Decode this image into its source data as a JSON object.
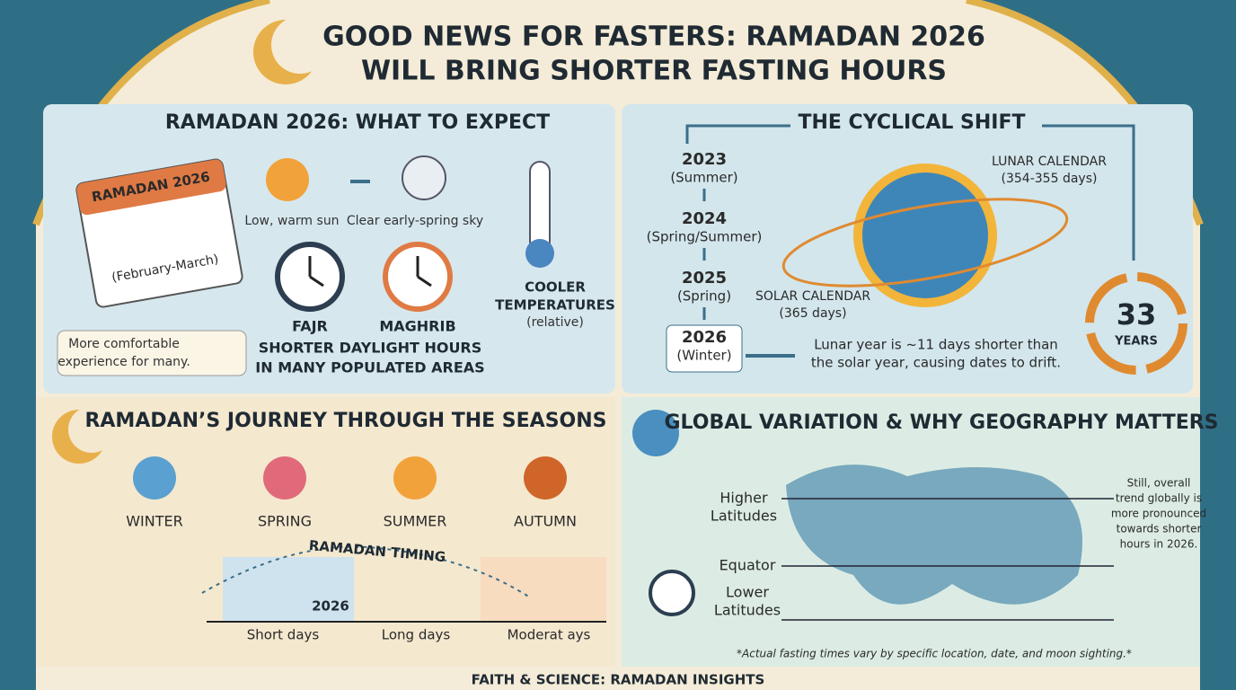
{
  "header": {
    "title_lines": [
      "GOOD NEWS FOR FASTERS: RAMADAN 2026",
      "WILL BRING SHORTER FASTING HOURS"
    ]
  },
  "expect": {
    "title": "RAMADAN 2026: WHAT TO EXPECT",
    "calendar_label": "RAMADAN 2026",
    "calendar_dates": "(February-March)",
    "sun_caption": "Low, warm sun",
    "sky_caption": "Clear early-spring sky",
    "fajr": "FAJR",
    "maghrib": "MAGHRIB",
    "daylight_lines": [
      "SHORTER DAYLIGHT HOURS",
      "IN MANY POPULATED AREAS"
    ],
    "temperature_lines": [
      "COOLER",
      "TEMPERATURES",
      "(relative)"
    ],
    "comfort_lines": [
      "More comfortable",
      "experience for many."
    ]
  },
  "shift": {
    "title": "THE CYCLICAL SHIFT",
    "timeline": [
      {
        "year": "2023",
        "season": "(Summer)"
      },
      {
        "year": "2024",
        "season": "(Spring/Summer)"
      },
      {
        "year": "2025",
        "season": "(Spring)"
      },
      {
        "year": "2026",
        "season": "(Winter)"
      }
    ],
    "lunar_lines": [
      "LUNAR CALENDAR",
      "(354-355 days)"
    ],
    "solar_lines": [
      "SOLAR CALENDAR",
      "(365 days)"
    ],
    "cycle_number": "33",
    "cycle_unit": "YEARS",
    "note_lines": [
      "Lunar year is ~11 days shorter than",
      "the solar year, causing dates to drift."
    ]
  },
  "seasons": {
    "title": "RAMADAN’S JOURNEY THROUGH THE SEASONS",
    "names": [
      "WINTER",
      "SPRING",
      "SUMMER",
      "AUTUMN"
    ],
    "timing_label": "RAMADAN TIMING",
    "timing_year": "2026",
    "day_lengths": [
      "Short days",
      "Long days",
      "Moderat ays"
    ]
  },
  "geography": {
    "title": "GLOBAL VARIATION & WHY GEOGRAPHY MATTERS",
    "higher_lines": [
      "Higher",
      "Latitudes"
    ],
    "equator": "Equator",
    "lower_lines": [
      "Lower",
      "Latitudes"
    ],
    "note_lines": [
      "Still, overall",
      "trend globally is",
      "more pronounced",
      "towards shorter",
      "hours in 2026."
    ],
    "footnote": "*Actual fasting times vary by specific location, date, and moon sighting.*"
  },
  "footer": {
    "text": "FAITH & SCIENCE: RAMADAN INSIGHTS"
  }
}
